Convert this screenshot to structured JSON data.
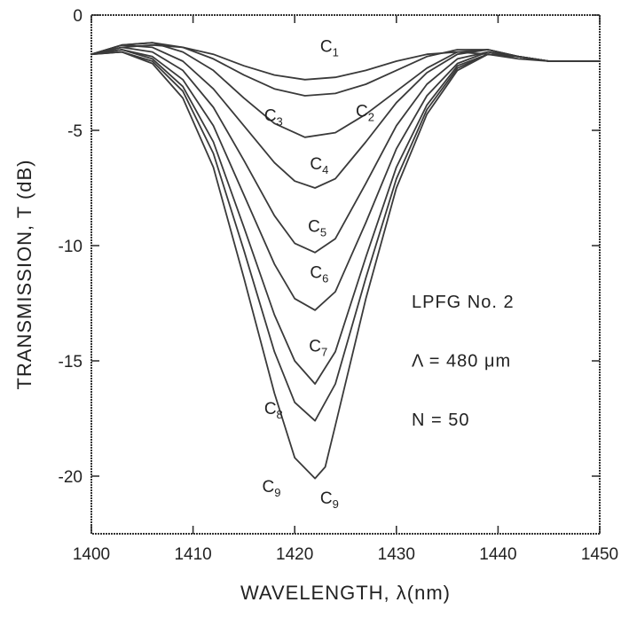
{
  "chart_data": {
    "type": "line",
    "title": "",
    "xlabel": "WAVELENGTH, λ(nm)",
    "ylabel": "TRANSMISSION, T (dB)",
    "xlim": [
      1400,
      1450
    ],
    "ylim": [
      -22.5,
      0
    ],
    "x_ticks": [
      1400,
      1410,
      1420,
      1430,
      1440,
      1450
    ],
    "x_tick_labels": [
      "1400",
      "1410",
      "1420",
      "1430",
      "1440",
      "1450"
    ],
    "y_ticks": [
      0,
      -5,
      -10,
      -15,
      -20
    ],
    "y_tick_labels": [
      "0",
      "-5",
      "-10",
      "-15",
      "-20"
    ],
    "grid": false,
    "annotation": [
      "LPFG No. 2",
      "Λ = 480 μm",
      "N = 50"
    ],
    "series": [
      {
        "name": "C1",
        "x": [
          1400,
          1403,
          1406,
          1409,
          1412,
          1415,
          1418,
          1421,
          1424,
          1427,
          1430,
          1433,
          1436,
          1439,
          1442,
          1445,
          1448,
          1450
        ],
        "y": [
          -1.7,
          -1.4,
          -1.3,
          -1.4,
          -1.7,
          -2.2,
          -2.6,
          -2.8,
          -2.7,
          -2.4,
          -2.0,
          -1.7,
          -1.6,
          -1.7,
          -1.9,
          -2.0,
          -2.0,
          -2.0
        ]
      },
      {
        "name": "C2",
        "x": [
          1400,
          1403,
          1406,
          1409,
          1412,
          1415,
          1418,
          1421,
          1424,
          1427,
          1430,
          1433,
          1436,
          1439,
          1442,
          1445,
          1448,
          1450
        ],
        "y": [
          -1.7,
          -1.3,
          -1.2,
          -1.4,
          -1.9,
          -2.6,
          -3.2,
          -3.5,
          -3.4,
          -3.0,
          -2.4,
          -1.8,
          -1.5,
          -1.5,
          -1.8,
          -2.0,
          -2.0,
          -2.0
        ]
      },
      {
        "name": "C3",
        "x": [
          1400,
          1403,
          1406,
          1409,
          1412,
          1415,
          1418,
          1421,
          1424,
          1427,
          1430,
          1433,
          1436,
          1439,
          1442,
          1445,
          1448,
          1450
        ],
        "y": [
          -1.7,
          -1.3,
          -1.2,
          -1.6,
          -2.4,
          -3.6,
          -4.7,
          -5.3,
          -5.1,
          -4.3,
          -3.3,
          -2.3,
          -1.6,
          -1.5,
          -1.8,
          -2.0,
          -2.0,
          -2.0
        ]
      },
      {
        "name": "C4",
        "x": [
          1400,
          1403,
          1406,
          1409,
          1412,
          1415,
          1418,
          1420,
          1422,
          1424,
          1427,
          1430,
          1433,
          1436,
          1439,
          1442,
          1445,
          1448,
          1450
        ],
        "y": [
          -1.7,
          -1.3,
          -1.4,
          -2.0,
          -3.2,
          -4.8,
          -6.4,
          -7.2,
          -7.5,
          -7.1,
          -5.5,
          -3.8,
          -2.5,
          -1.7,
          -1.5,
          -1.8,
          -2.0,
          -2.0,
          -2.0
        ]
      },
      {
        "name": "C5",
        "x": [
          1400,
          1403,
          1406,
          1409,
          1412,
          1415,
          1418,
          1420,
          1422,
          1424,
          1427,
          1430,
          1433,
          1436,
          1439,
          1442,
          1445,
          1448,
          1450
        ],
        "y": [
          -1.7,
          -1.4,
          -1.6,
          -2.4,
          -4.0,
          -6.3,
          -8.7,
          -9.9,
          -10.3,
          -9.7,
          -7.3,
          -4.8,
          -3.0,
          -1.9,
          -1.6,
          -1.8,
          -2.0,
          -2.0,
          -2.0
        ]
      },
      {
        "name": "C6",
        "x": [
          1400,
          1403,
          1406,
          1409,
          1412,
          1415,
          1418,
          1420,
          1422,
          1424,
          1427,
          1430,
          1433,
          1436,
          1439,
          1442,
          1445,
          1448,
          1450
        ],
        "y": [
          -1.7,
          -1.5,
          -1.8,
          -2.8,
          -4.8,
          -7.8,
          -10.8,
          -12.3,
          -12.8,
          -12.0,
          -9.0,
          -5.8,
          -3.5,
          -2.1,
          -1.6,
          -1.8,
          -2.0,
          -2.0,
          -2.0
        ]
      },
      {
        "name": "C7",
        "x": [
          1400,
          1403,
          1406,
          1409,
          1412,
          1415,
          1418,
          1420,
          1422,
          1424,
          1427,
          1430,
          1433,
          1436,
          1439,
          1442,
          1445,
          1448,
          1450
        ],
        "y": [
          -1.7,
          -1.5,
          -1.9,
          -3.1,
          -5.5,
          -9.2,
          -13.0,
          -15.0,
          -16.0,
          -14.6,
          -10.5,
          -6.6,
          -3.9,
          -2.2,
          -1.7,
          -1.8,
          -2.0,
          -2.0,
          -2.0
        ]
      },
      {
        "name": "C8",
        "x": [
          1400,
          1403,
          1406,
          1409,
          1412,
          1415,
          1418,
          1420,
          1422,
          1424,
          1427,
          1430,
          1433,
          1436,
          1439,
          1442,
          1445,
          1448,
          1450
        ],
        "y": [
          -1.7,
          -1.6,
          -2.0,
          -3.3,
          -6.0,
          -10.2,
          -14.6,
          -16.8,
          -17.6,
          -16.0,
          -11.4,
          -7.1,
          -4.1,
          -2.3,
          -1.7,
          -1.8,
          -2.0,
          -2.0,
          -2.0
        ]
      },
      {
        "name": "C9",
        "x": [
          1400,
          1403,
          1406,
          1409,
          1412,
          1415,
          1418,
          1420,
          1422,
          1423,
          1424,
          1427,
          1430,
          1433,
          1436,
          1439,
          1442,
          1445,
          1448,
          1450
        ],
        "y": [
          -1.7,
          -1.6,
          -2.1,
          -3.6,
          -6.6,
          -11.4,
          -16.4,
          -19.2,
          -20.1,
          -19.6,
          -17.8,
          -12.3,
          -7.5,
          -4.3,
          -2.4,
          -1.7,
          -1.8,
          -2.0,
          -2.0,
          -2.0
        ]
      }
    ],
    "curve_labels": [
      {
        "text": "C1",
        "x": 1422.5,
        "y": -1.6
      },
      {
        "text": "C2",
        "x": 1426.0,
        "y": -4.4
      },
      {
        "text": "C3",
        "x": 1417.0,
        "y": -4.6
      },
      {
        "text": "C4",
        "x": 1421.5,
        "y": -6.7
      },
      {
        "text": "C5",
        "x": 1421.3,
        "y": -9.4
      },
      {
        "text": "C6",
        "x": 1421.5,
        "y": -11.4
      },
      {
        "text": "C7",
        "x": 1421.4,
        "y": -14.6
      },
      {
        "text": "C8",
        "x": 1417.0,
        "y": -17.3
      },
      {
        "text": "C9",
        "x": 1416.8,
        "y": -20.7
      },
      {
        "text": "C9",
        "x": 1422.5,
        "y": -21.2
      }
    ]
  }
}
